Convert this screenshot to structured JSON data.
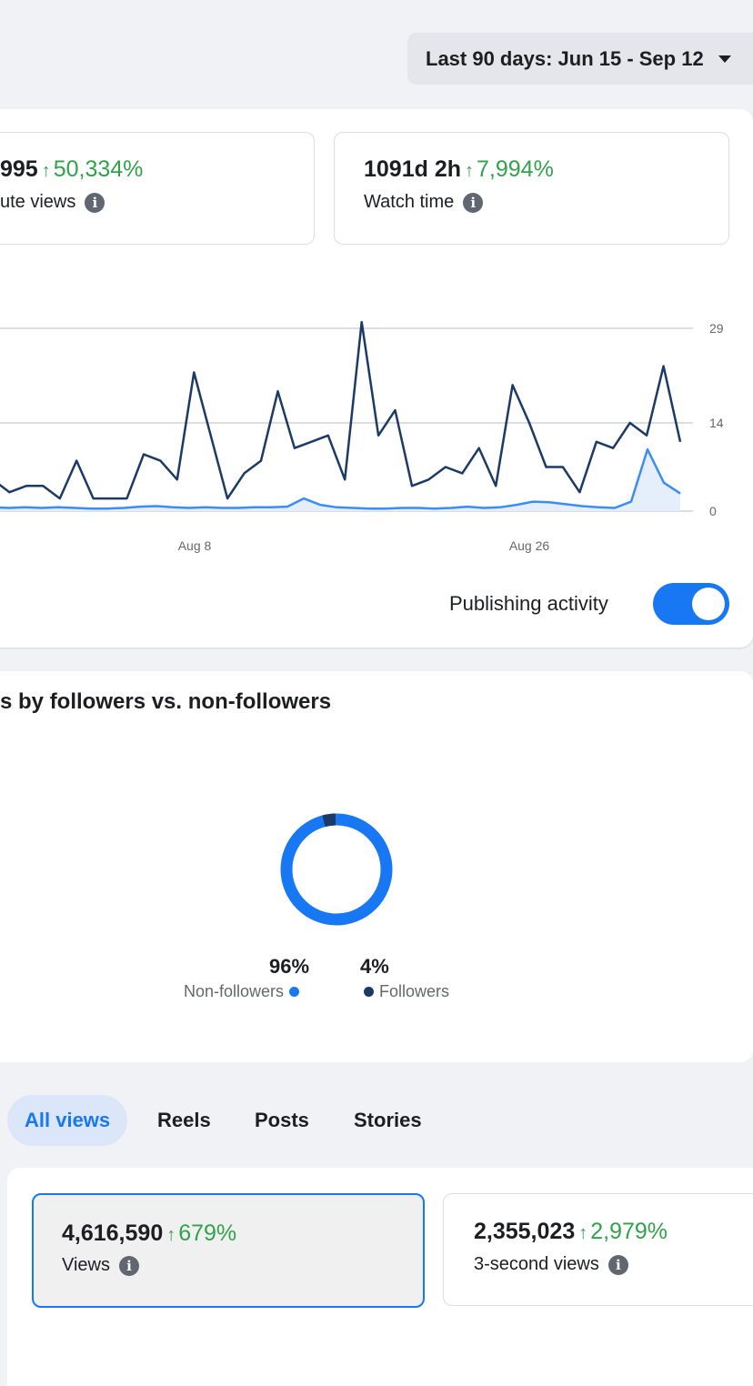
{
  "date_range": {
    "label": "Last 90 days: Jun 15 - Sep 12"
  },
  "metrics_top": [
    {
      "value": "995",
      "change": "50,334%",
      "label": "ute views"
    },
    {
      "value": "1091d 2h",
      "change": "7,994%",
      "label": "Watch time"
    }
  ],
  "chart_data": {
    "type": "line",
    "x_tick_labels": [
      "Aug 8",
      "Aug 26"
    ],
    "y_ticks": [
      0,
      14,
      29
    ],
    "ylim": [
      0,
      29
    ],
    "grid": true,
    "colors": {
      "dark_series": "#1b3a66",
      "light_series": "#3b8cf5",
      "light_fill": "#e5effc"
    },
    "series": [
      {
        "values": [
          5,
          3,
          4,
          4,
          2,
          8,
          2,
          2,
          2,
          9,
          8,
          5,
          22,
          12,
          2,
          6,
          8,
          19,
          10,
          11,
          12,
          5,
          30,
          12,
          16,
          4,
          5,
          7,
          6,
          10,
          4,
          20,
          14,
          7,
          7,
          3,
          11,
          10,
          14,
          12,
          23,
          11
        ]
      },
      {
        "values": [
          0.6,
          0.5,
          0.6,
          0.5,
          0.6,
          0.5,
          0.4,
          0.4,
          0.5,
          0.7,
          0.8,
          0.6,
          0.5,
          0.6,
          0.5,
          0.5,
          0.6,
          0.6,
          0.7,
          2.0,
          1.0,
          0.6,
          0.5,
          0.4,
          0.4,
          0.5,
          0.5,
          0.4,
          0.5,
          0.7,
          0.5,
          0.6,
          1.0,
          1.5,
          1.4,
          1.1,
          0.8,
          0.6,
          0.5,
          1.5,
          9.8,
          4.5,
          2.8
        ]
      }
    ]
  },
  "publishing_activity": {
    "label": "Publishing activity",
    "on": true
  },
  "followers_card": {
    "title": "s by followers vs. non-followers",
    "chart_data": {
      "type": "pie",
      "slices": [
        {
          "label": "Non-followers",
          "value": 96,
          "display": "96%",
          "color": "#1877f2"
        },
        {
          "label": "Followers",
          "value": 4,
          "display": "4%",
          "color": "#1b3a66"
        }
      ]
    }
  },
  "tabs": [
    {
      "label": "All views",
      "active": true
    },
    {
      "label": "Reels",
      "active": false
    },
    {
      "label": "Posts",
      "active": false
    },
    {
      "label": "Stories",
      "active": false
    }
  ],
  "metrics_bottom": [
    {
      "value": "4,616,590",
      "change": "679%",
      "label": "Views",
      "selected": true
    },
    {
      "value": "2,355,023",
      "change": "2,979%",
      "label": "3-second views",
      "selected": false
    }
  ],
  "icons": {
    "up_arrow": "up-arrow-icon",
    "info": "info-icon",
    "caret": "caret-down-icon"
  }
}
